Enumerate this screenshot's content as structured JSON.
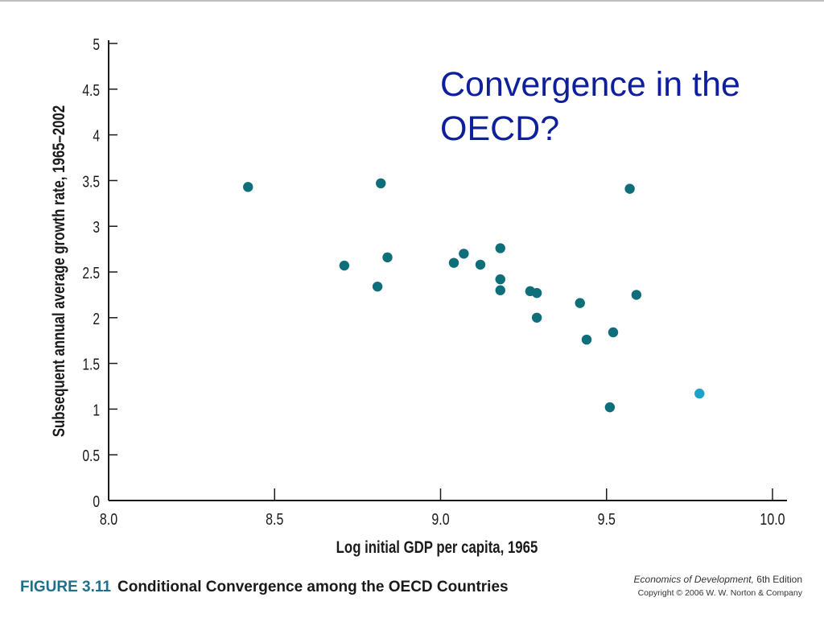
{
  "slide": {
    "title": "Convergence in the OECD?"
  },
  "figure": {
    "label": "FIGURE 3.11",
    "caption": "Conditional Convergence among the OECD Countries"
  },
  "credit": {
    "book": "Economics of Development,",
    "edition": "6th Edition",
    "copyright": "Copyright © 2006 W. W. Norton & Company"
  },
  "chart_data": {
    "type": "scatter",
    "xlabel": "Log initial GDP per capita, 1965",
    "ylabel": "Subsequent annual average growth rate, 1965–2002",
    "xlim": [
      8.0,
      10.0
    ],
    "ylim": [
      0,
      5
    ],
    "x_ticks": [
      "8.0",
      "8.5",
      "9.0",
      "9.5",
      "10.0"
    ],
    "y_ticks": [
      "0",
      "0.5",
      "1",
      "1.5",
      "2",
      "2.5",
      "3",
      "3.5",
      "4",
      "4.5",
      "5"
    ],
    "grid": false,
    "point_color": "#0e6e7a",
    "highlight_color": "#1da1c8",
    "points": [
      {
        "x": 8.42,
        "y": 3.43
      },
      {
        "x": 8.71,
        "y": 2.57
      },
      {
        "x": 8.81,
        "y": 2.34
      },
      {
        "x": 8.82,
        "y": 3.47
      },
      {
        "x": 8.84,
        "y": 2.66
      },
      {
        "x": 9.04,
        "y": 2.6
      },
      {
        "x": 9.07,
        "y": 2.7
      },
      {
        "x": 9.12,
        "y": 2.58
      },
      {
        "x": 9.18,
        "y": 2.76
      },
      {
        "x": 9.18,
        "y": 2.42
      },
      {
        "x": 9.18,
        "y": 2.3
      },
      {
        "x": 9.27,
        "y": 2.29
      },
      {
        "x": 9.29,
        "y": 2.27
      },
      {
        "x": 9.29,
        "y": 2.0
      },
      {
        "x": 9.42,
        "y": 2.16
      },
      {
        "x": 9.44,
        "y": 1.76
      },
      {
        "x": 9.51,
        "y": 1.02
      },
      {
        "x": 9.52,
        "y": 1.84
      },
      {
        "x": 9.57,
        "y": 3.41
      },
      {
        "x": 9.59,
        "y": 2.25
      },
      {
        "x": 9.78,
        "y": 1.17,
        "highlight": true
      }
    ]
  }
}
